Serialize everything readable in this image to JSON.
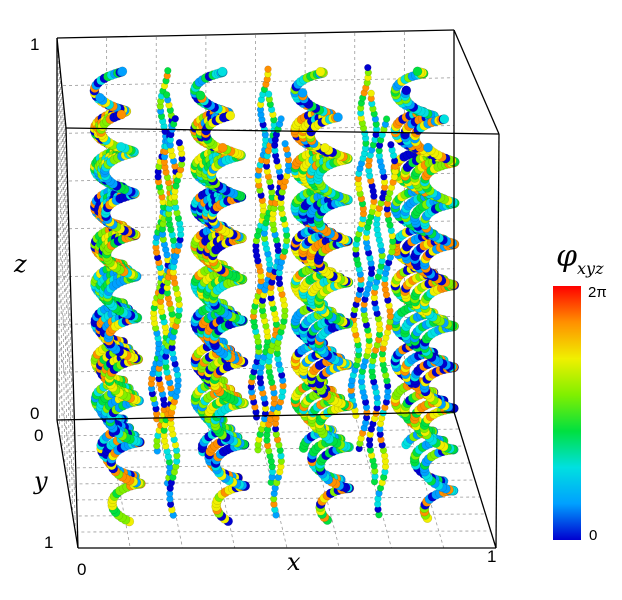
{
  "chart_data": {
    "type": "3d-tube-plot",
    "axes": {
      "x": {
        "label": "x",
        "ticks": [
          "0",
          "1"
        ],
        "range": [
          0,
          1
        ]
      },
      "y": {
        "label": "y",
        "ticks": [
          "0",
          "1"
        ],
        "range": [
          0,
          1
        ]
      },
      "z": {
        "label": "z",
        "ticks": [
          "0",
          "1"
        ],
        "range": [
          0,
          1
        ]
      }
    },
    "grid": true,
    "colorbar": {
      "label_main": "φ",
      "label_sub": "xyz",
      "min_label": "0",
      "max_label": "2π",
      "range": [
        0,
        6.283
      ],
      "colormap": [
        "#0000d0",
        "#00a0ff",
        "#00e0e0",
        "#00e040",
        "#80f000",
        "#f0f000",
        "#ff9000",
        "#ff0000"
      ]
    },
    "tubes": [
      {
        "x": 0.125,
        "y": 0.125,
        "kind": "coil"
      },
      {
        "x": 0.375,
        "y": 0.125,
        "kind": "coil"
      },
      {
        "x": 0.625,
        "y": 0.125,
        "kind": "coil"
      },
      {
        "x": 0.875,
        "y": 0.125,
        "kind": "coil"
      },
      {
        "x": 0.25,
        "y": 0.125,
        "kind": "strand"
      },
      {
        "x": 0.5,
        "y": 0.125,
        "kind": "strand"
      },
      {
        "x": 0.75,
        "y": 0.125,
        "kind": "strand"
      },
      {
        "x": 0.125,
        "y": 0.375,
        "kind": "coil"
      },
      {
        "x": 0.375,
        "y": 0.375,
        "kind": "coil"
      },
      {
        "x": 0.625,
        "y": 0.375,
        "kind": "coil"
      },
      {
        "x": 0.875,
        "y": 0.375,
        "kind": "coil"
      },
      {
        "x": 0.25,
        "y": 0.375,
        "kind": "strand"
      },
      {
        "x": 0.5,
        "y": 0.375,
        "kind": "strand"
      },
      {
        "x": 0.75,
        "y": 0.375,
        "kind": "strand"
      },
      {
        "x": 0.125,
        "y": 0.625,
        "kind": "coil"
      },
      {
        "x": 0.375,
        "y": 0.625,
        "kind": "coil"
      },
      {
        "x": 0.625,
        "y": 0.625,
        "kind": "coil"
      },
      {
        "x": 0.875,
        "y": 0.625,
        "kind": "coil"
      },
      {
        "x": 0.25,
        "y": 0.625,
        "kind": "strand"
      },
      {
        "x": 0.5,
        "y": 0.625,
        "kind": "strand"
      },
      {
        "x": 0.75,
        "y": 0.625,
        "kind": "strand"
      },
      {
        "x": 0.125,
        "y": 0.875,
        "kind": "coil"
      },
      {
        "x": 0.375,
        "y": 0.875,
        "kind": "coil"
      },
      {
        "x": 0.625,
        "y": 0.875,
        "kind": "coil"
      },
      {
        "x": 0.875,
        "y": 0.875,
        "kind": "coil"
      },
      {
        "x": 0.25,
        "y": 0.875,
        "kind": "strand"
      },
      {
        "x": 0.5,
        "y": 0.875,
        "kind": "strand"
      },
      {
        "x": 0.75,
        "y": 0.875,
        "kind": "strand"
      }
    ]
  }
}
